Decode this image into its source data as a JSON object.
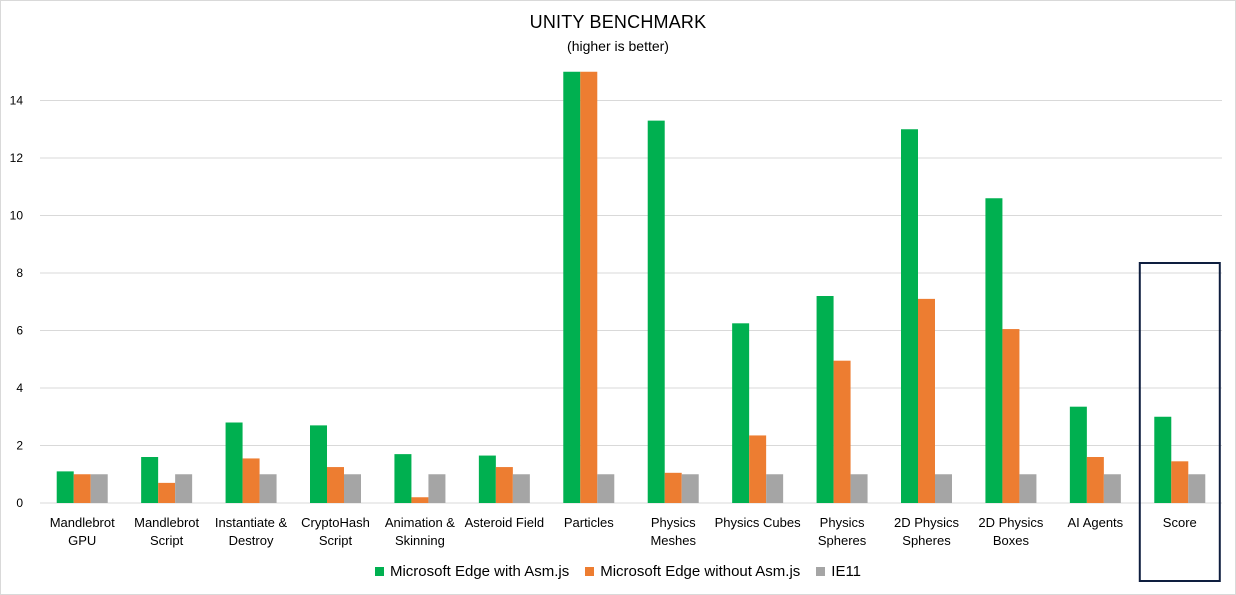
{
  "chart_data": {
    "type": "bar",
    "title": "UNITY BENCHMARK",
    "subtitle": "(higher is better)",
    "xlabel": "",
    "ylabel": "",
    "ylim": [
      0,
      15
    ],
    "yticks": [
      0,
      2,
      4,
      6,
      8,
      10,
      12,
      14
    ],
    "grid": true,
    "legend_position": "bottom",
    "categories": [
      [
        "Mandlebrot",
        "GPU"
      ],
      [
        "Mandlebrot",
        "Script"
      ],
      [
        "Instantiate &",
        "Destroy"
      ],
      [
        "CryptoHash",
        "Script"
      ],
      [
        "Animation &",
        "Skinning"
      ],
      [
        "Asteroid Field"
      ],
      [
        "Particles"
      ],
      [
        "Physics",
        "Meshes"
      ],
      [
        "Physics Cubes"
      ],
      [
        "Physics",
        "Spheres"
      ],
      [
        "2D Physics",
        "Spheres"
      ],
      [
        "2D Physics",
        "Boxes"
      ],
      [
        "AI Agents"
      ],
      [
        "Score"
      ]
    ],
    "series": [
      {
        "name": "Microsoft Edge with Asm.js",
        "color": "#00b050",
        "values": [
          1.1,
          1.6,
          2.8,
          2.7,
          1.7,
          1.65,
          15.0,
          13.3,
          6.25,
          7.2,
          13.0,
          10.6,
          3.35,
          3.0
        ]
      },
      {
        "name": "Microsoft Edge without Asm.js",
        "color": "#ed7d31",
        "values": [
          1.0,
          0.7,
          1.55,
          1.25,
          0.2,
          1.25,
          15.0,
          1.05,
          2.35,
          4.95,
          7.1,
          6.05,
          1.6,
          1.45
        ]
      },
      {
        "name": "IE11",
        "color": "#a5a5a5",
        "values": [
          1.0,
          1.0,
          1.0,
          1.0,
          1.0,
          1.0,
          1.0,
          1.0,
          1.0,
          1.0,
          1.0,
          1.0,
          1.0,
          1.0
        ]
      }
    ],
    "highlight": {
      "category": "Score",
      "color": "#0e1e3f"
    }
  }
}
